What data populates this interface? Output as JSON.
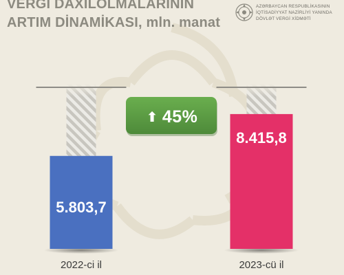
{
  "header": {
    "title_line1": "VERGİ DAXİLOLMALARININ",
    "title_line2": "ARTIM DİNAMİKASI,",
    "title_unit": "mln. manat"
  },
  "organization": {
    "line1": "AZƏRBAYCAN RESPUBLİKASININ",
    "line2": "İQTİSADİYYAT NAZİRLİYİ YANINDA",
    "line3": "DÖVLƏT VERGİ XİDMƏTİ"
  },
  "colors": {
    "background": "#efebe0",
    "bar_2022": "#4a70c0",
    "bar_2023": "#e43068",
    "badge": "#5f9e46",
    "hatch": "#c8c6bf"
  },
  "chart_data": {
    "type": "bar",
    "categories": [
      "2022-ci il",
      "2023-cü il"
    ],
    "values": [
      5803.7,
      8415.8
    ],
    "value_labels": [
      "5.803,7",
      "8.415,8"
    ],
    "growth_label": "45%",
    "icons": {
      "growth": "up-arrow-icon"
    }
  }
}
